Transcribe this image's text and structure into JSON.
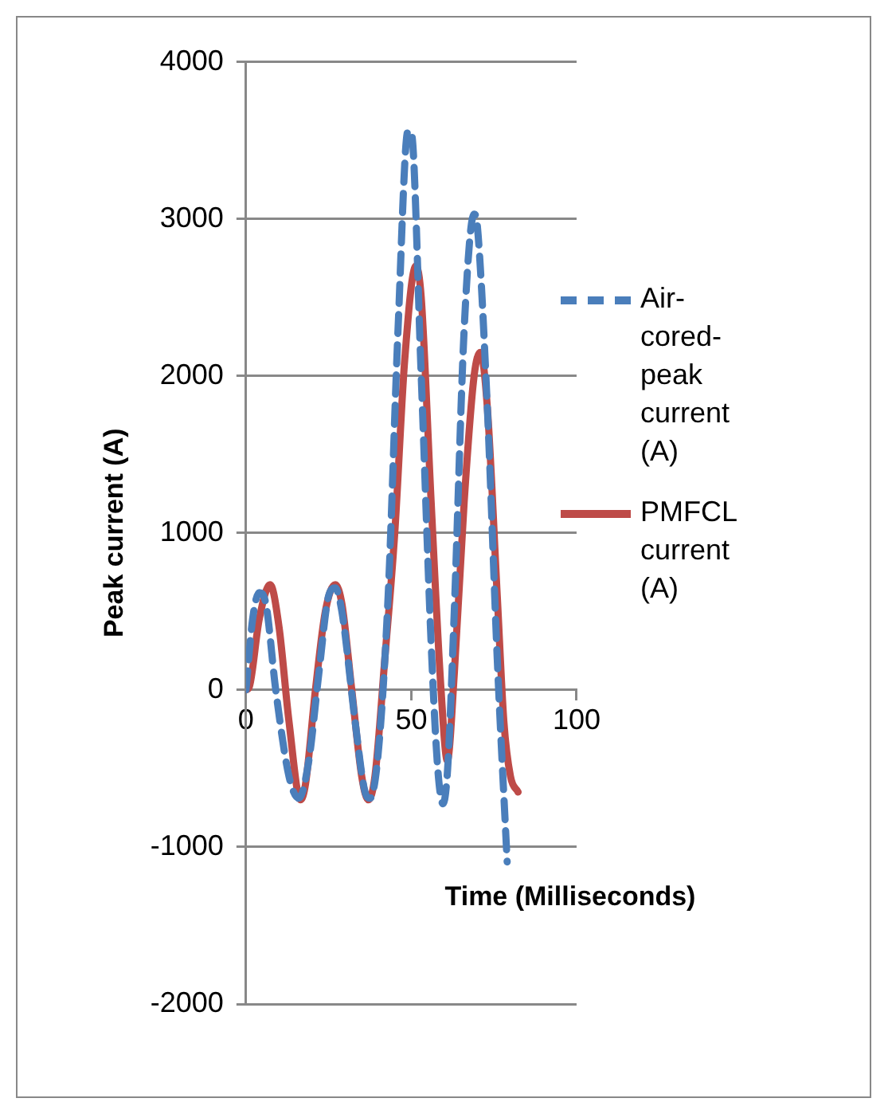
{
  "chart_data": {
    "type": "line",
    "xlabel": "Time (Milliseconds)",
    "ylabel": "Peak current (A)",
    "xlim": [
      0,
      100
    ],
    "xticks": [
      0,
      50,
      100
    ],
    "ylim": [
      -2000,
      4000
    ],
    "yticks": [
      -2000,
      -1000,
      0,
      1000,
      2000,
      3000,
      4000
    ],
    "grid": "y",
    "legend": "right",
    "marker": "none",
    "series": [
      {
        "name": "Air-cored-peak current (A)",
        "color": "#4a7ebb",
        "line_style": "dashed",
        "x": [
          0,
          2,
          4,
          6,
          9,
          13,
          16,
          19,
          22,
          25,
          27,
          29,
          33,
          36,
          37.5,
          40,
          43,
          46,
          49,
          50,
          53,
          56,
          58,
          59.6,
          61,
          63,
          66,
          69,
          70,
          73,
          76,
          79
        ],
        "values": [
          0,
          450,
          620,
          550,
          0,
          -550,
          -690,
          -450,
          100,
          600,
          650,
          500,
          -200,
          -650,
          -690,
          -400,
          600,
          2300,
          3560,
          3550,
          2000,
          300,
          -500,
          -725,
          -500,
          500,
          2300,
          3030,
          2950,
          1800,
          200,
          -1095
        ]
      },
      {
        "name": "PMFCL current (A)",
        "color": "#be4b48",
        "line_style": "solid",
        "x": [
          0,
          1,
          4,
          7.3,
          10,
          13,
          16.5,
          18,
          21,
          24,
          27,
          29,
          32,
          35,
          37,
          39,
          42,
          45,
          48,
          51.4,
          53,
          56,
          59,
          60.9,
          63,
          66,
          69,
          70.9,
          73,
          76,
          78,
          80,
          82.3
        ],
        "values": [
          0,
          20,
          450,
          670,
          400,
          -200,
          -700,
          -600,
          0,
          500,
          670,
          550,
          0,
          -550,
          -700,
          -550,
          200,
          1000,
          2100,
          2700,
          2500,
          1200,
          0,
          -450,
          100,
          1200,
          2000,
          2150,
          1800,
          600,
          -200,
          -550,
          -650
        ]
      }
    ]
  }
}
